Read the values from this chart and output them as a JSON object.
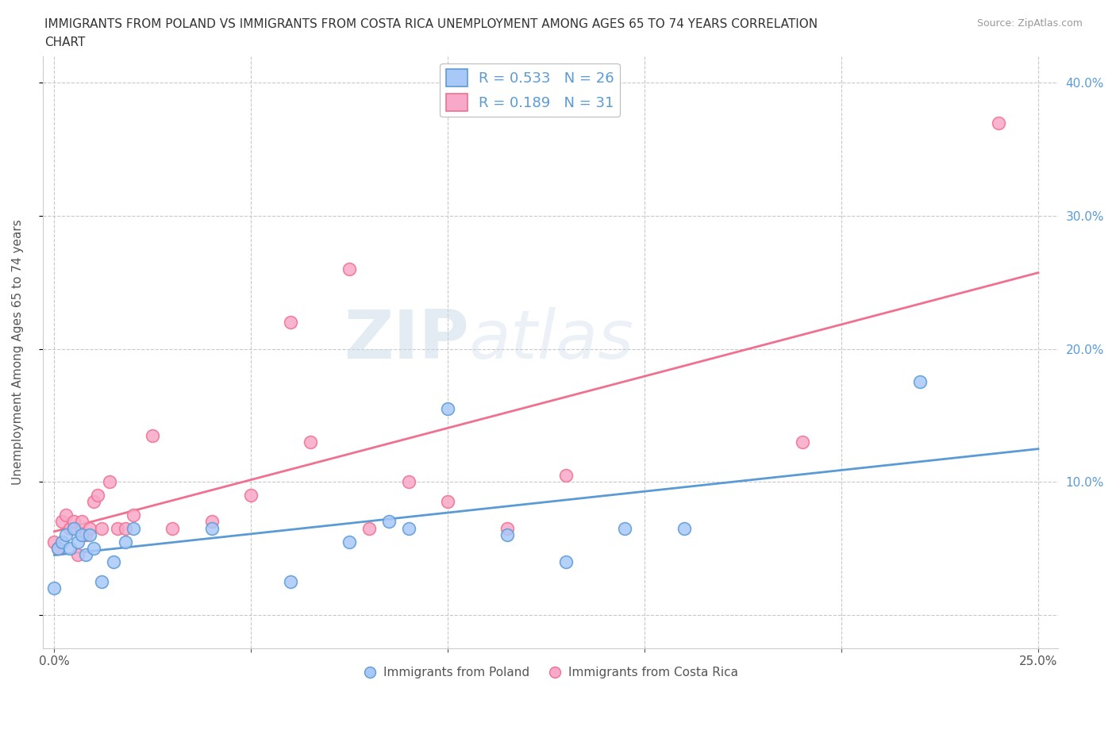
{
  "title_line1": "IMMIGRANTS FROM POLAND VS IMMIGRANTS FROM COSTA RICA UNEMPLOYMENT AMONG AGES 65 TO 74 YEARS CORRELATION",
  "title_line2": "CHART",
  "source_text": "Source: ZipAtlas.com",
  "ylabel": "Unemployment Among Ages 65 to 74 years",
  "xlim": [
    -0.003,
    0.255
  ],
  "ylim": [
    -0.025,
    0.42
  ],
  "xticks": [
    0.0,
    0.05,
    0.1,
    0.15,
    0.2,
    0.25
  ],
  "yticks": [
    0.0,
    0.1,
    0.2,
    0.3,
    0.4
  ],
  "poland_color": "#a8c8f8",
  "costa_rica_color": "#f8a8c8",
  "poland_line_color": "#5b9bd5",
  "costa_rica_line_color": "#f07090",
  "watermark_zip": "ZIP",
  "watermark_atlas": "atlas",
  "poland_x": [
    0.0,
    0.001,
    0.002,
    0.003,
    0.004,
    0.005,
    0.006,
    0.007,
    0.008,
    0.009,
    0.01,
    0.012,
    0.015,
    0.018,
    0.02,
    0.04,
    0.06,
    0.075,
    0.085,
    0.09,
    0.1,
    0.115,
    0.13,
    0.145,
    0.16,
    0.22
  ],
  "poland_y": [
    0.02,
    0.05,
    0.055,
    0.06,
    0.05,
    0.065,
    0.055,
    0.06,
    0.045,
    0.06,
    0.05,
    0.025,
    0.04,
    0.055,
    0.065,
    0.065,
    0.025,
    0.055,
    0.07,
    0.065,
    0.155,
    0.06,
    0.04,
    0.065,
    0.065,
    0.175
  ],
  "costa_rica_x": [
    0.0,
    0.001,
    0.002,
    0.003,
    0.004,
    0.005,
    0.006,
    0.007,
    0.008,
    0.009,
    0.01,
    0.011,
    0.012,
    0.014,
    0.016,
    0.018,
    0.02,
    0.025,
    0.03,
    0.04,
    0.05,
    0.06,
    0.065,
    0.075,
    0.08,
    0.09,
    0.1,
    0.115,
    0.13,
    0.19,
    0.24
  ],
  "costa_rica_y": [
    0.055,
    0.05,
    0.07,
    0.075,
    0.065,
    0.07,
    0.045,
    0.07,
    0.06,
    0.065,
    0.085,
    0.09,
    0.065,
    0.1,
    0.065,
    0.065,
    0.075,
    0.135,
    0.065,
    0.07,
    0.09,
    0.22,
    0.13,
    0.26,
    0.065,
    0.1,
    0.085,
    0.065,
    0.105,
    0.13,
    0.37
  ],
  "background_color": "#ffffff",
  "grid_color": "#c8c8c8",
  "tick_color": "#5b9bd5",
  "left_ytick_color": "#888888"
}
